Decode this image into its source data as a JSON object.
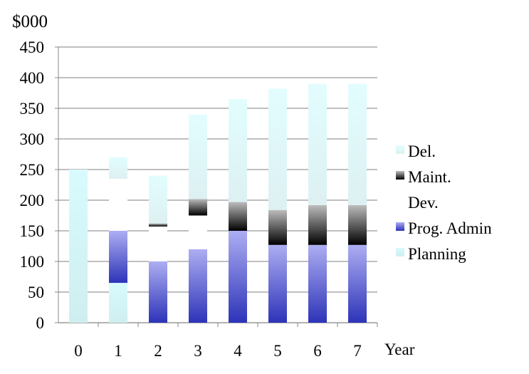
{
  "chart_data": {
    "type": "bar",
    "stacked": true,
    "ylabel": "$000",
    "xlabel": "Year",
    "ylim": [
      0,
      450
    ],
    "yticks": [
      0,
      50,
      100,
      150,
      200,
      250,
      300,
      350,
      400,
      450
    ],
    "grid": true,
    "legend_position": "right",
    "categories": [
      "0",
      "1",
      "2",
      "3",
      "4",
      "5",
      "6",
      "7"
    ],
    "series": [
      {
        "name": "Planning",
        "color": "#d6f6f8",
        "values": [
          250,
          65,
          0,
          0,
          0,
          0,
          0,
          0
        ]
      },
      {
        "name": "Prog. Admin",
        "color": "#3a3fc0",
        "values": [
          0,
          85,
          100,
          120,
          150,
          127,
          127,
          127
        ]
      },
      {
        "name": "Dev.",
        "color": "#ffffff",
        "values": [
          0,
          85,
          57,
          55,
          0,
          0,
          0,
          0
        ]
      },
      {
        "name": "Maint.",
        "color": "#111111",
        "values": [
          0,
          0,
          5,
          27,
          47,
          57,
          65,
          65
        ]
      },
      {
        "name": "Del.",
        "color": "#e2f6f8",
        "values": [
          0,
          35,
          78,
          138,
          168,
          198,
          198,
          198
        ]
      }
    ],
    "legend_order": [
      "Del.",
      "Maint.",
      "Dev.",
      "Prog. Admin",
      "Planning"
    ]
  }
}
